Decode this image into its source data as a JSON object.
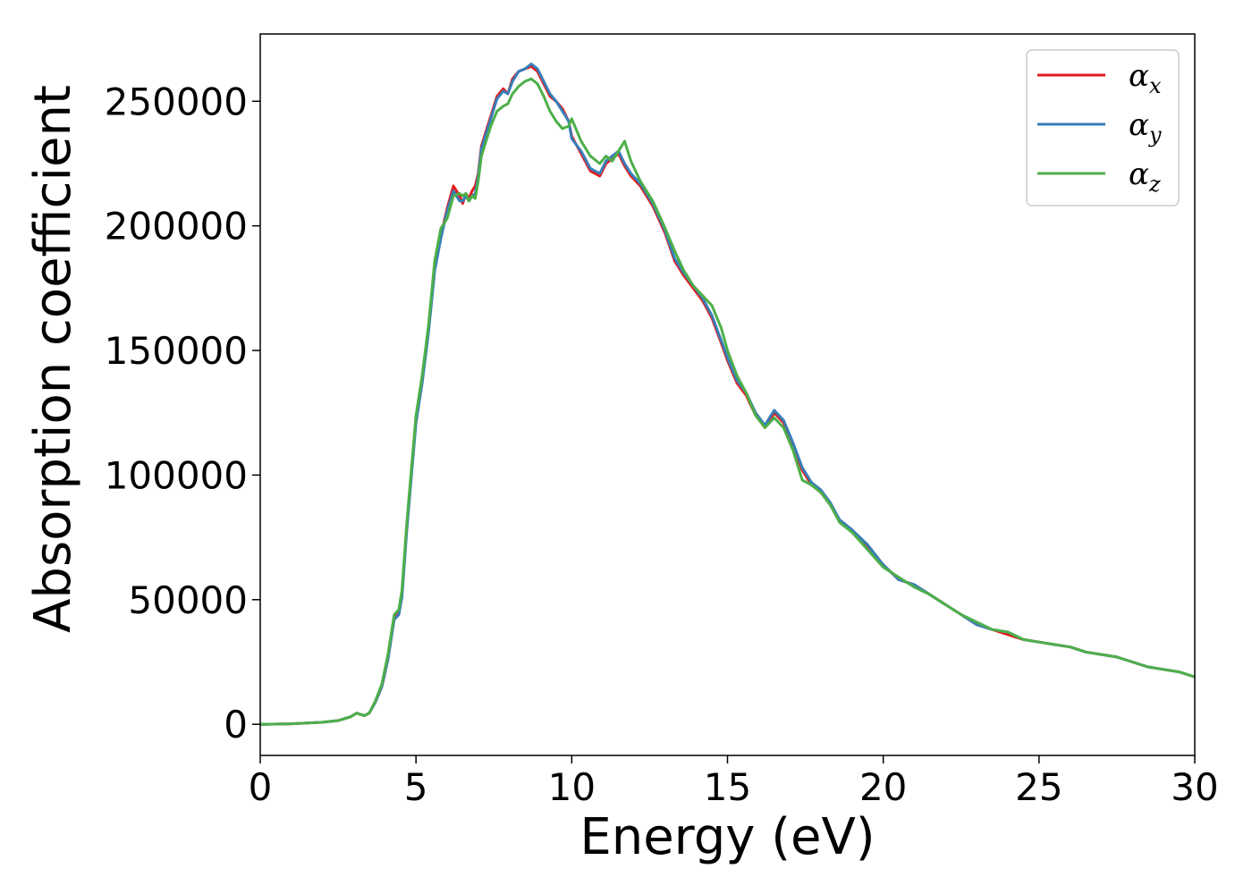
{
  "chart_data": {
    "type": "line",
    "xlabel": "Energy (eV)",
    "ylabel": "Absorption coefficient",
    "xlim": [
      0,
      30
    ],
    "ylim": [
      -12500,
      277000
    ],
    "xticks": [
      "0",
      "5",
      "10",
      "15",
      "20",
      "25",
      "30"
    ],
    "yticks": [
      "0",
      "50000",
      "100000",
      "150000",
      "200000",
      "250000"
    ],
    "grid": false,
    "legend_position": "top-right",
    "series": [
      {
        "name": "α",
        "sub": "x",
        "color": "#e41a1c",
        "x": [
          0,
          1,
          2,
          2.5,
          2.9,
          3.1,
          3.2,
          3.35,
          3.5,
          3.7,
          3.9,
          4.1,
          4.3,
          4.45,
          4.55,
          4.7,
          4.85,
          5.0,
          5.2,
          5.4,
          5.6,
          5.8,
          6.0,
          6.2,
          6.4,
          6.5,
          6.6,
          6.7,
          6.8,
          6.9,
          7.0,
          7.1,
          7.25,
          7.4,
          7.6,
          7.8,
          7.95,
          8.1,
          8.3,
          8.5,
          8.7,
          8.9,
          9.1,
          9.3,
          9.5,
          9.7,
          9.9,
          10.0,
          10.3,
          10.6,
          10.9,
          11.1,
          11.3,
          11.5,
          11.7,
          11.9,
          12.2,
          12.6,
          13.0,
          13.3,
          13.6,
          13.9,
          14.2,
          14.5,
          14.8,
          15.0,
          15.3,
          15.6,
          15.9,
          16.2,
          16.5,
          16.8,
          17.1,
          17.4,
          17.7,
          18.0,
          18.3,
          18.6,
          19.0,
          19.5,
          20.0,
          20.5,
          21.0,
          21.5,
          22.0,
          22.5,
          23.0,
          23.5,
          24.0,
          24.5,
          25.0,
          25.5,
          26.0,
          26.5,
          27.0,
          27.5,
          28.0,
          28.5,
          29.0,
          29.5,
          30.0
        ],
        "y": [
          0,
          200,
          800,
          1500,
          3000,
          4500,
          4000,
          3500,
          4500,
          9000,
          15000,
          26000,
          43000,
          45000,
          52000,
          78000,
          100000,
          122000,
          138000,
          158000,
          183000,
          196000,
          207000,
          216000,
          212000,
          209000,
          213000,
          211000,
          214000,
          216000,
          221000,
          232000,
          238000,
          244000,
          252000,
          255000,
          253000,
          259000,
          262000,
          263000,
          264000,
          262000,
          257000,
          252000,
          250000,
          247000,
          242000,
          236000,
          229000,
          222000,
          220000,
          225000,
          227000,
          229000,
          224000,
          220000,
          216000,
          208000,
          197000,
          186000,
          180000,
          175000,
          170000,
          163000,
          153000,
          146000,
          137000,
          132000,
          124000,
          119000,
          125000,
          121000,
          112000,
          102000,
          96000,
          93000,
          88000,
          82000,
          78000,
          71000,
          64000,
          58000,
          56000,
          52000,
          48000,
          44000,
          40000,
          38000,
          36000,
          34000,
          33000,
          32000,
          31000,
          29000,
          28000,
          27000,
          25000,
          23000,
          22000,
          21000,
          19000
        ]
      },
      {
        "name": "α",
        "sub": "y",
        "color": "#377eb8",
        "x": [
          0,
          1,
          2,
          2.5,
          2.9,
          3.1,
          3.2,
          3.35,
          3.5,
          3.7,
          3.9,
          4.1,
          4.3,
          4.45,
          4.55,
          4.7,
          4.85,
          5.0,
          5.2,
          5.4,
          5.6,
          5.8,
          6.0,
          6.2,
          6.4,
          6.5,
          6.6,
          6.7,
          6.8,
          6.9,
          7.0,
          7.1,
          7.25,
          7.4,
          7.6,
          7.8,
          7.95,
          8.1,
          8.3,
          8.5,
          8.7,
          8.9,
          9.1,
          9.3,
          9.5,
          9.7,
          9.9,
          10.0,
          10.3,
          10.6,
          10.9,
          11.1,
          11.3,
          11.5,
          11.7,
          11.9,
          12.2,
          12.6,
          13.0,
          13.3,
          13.6,
          13.9,
          14.2,
          14.5,
          14.8,
          15.0,
          15.3,
          15.6,
          15.9,
          16.2,
          16.5,
          16.8,
          17.1,
          17.4,
          17.7,
          18.0,
          18.3,
          18.6,
          19.0,
          19.5,
          20.0,
          20.5,
          21.0,
          21.5,
          22.0,
          22.5,
          23.0,
          23.5,
          24.0,
          24.5,
          25.0,
          25.5,
          26.0,
          26.5,
          27.0,
          27.5,
          28.0,
          28.5,
          29.0,
          29.5,
          30.0
        ],
        "y": [
          0,
          200,
          800,
          1500,
          3000,
          4500,
          4000,
          3500,
          4500,
          9000,
          15000,
          26000,
          42000,
          44000,
          51000,
          77000,
          99000,
          121000,
          137000,
          157000,
          182000,
          195000,
          206000,
          214000,
          210000,
          210000,
          212000,
          210000,
          212000,
          213000,
          220000,
          231000,
          237000,
          243000,
          251000,
          254000,
          253000,
          258000,
          262000,
          263000,
          265000,
          263000,
          258000,
          253000,
          250000,
          246000,
          242000,
          235000,
          230000,
          223000,
          221000,
          226000,
          228000,
          230000,
          225000,
          221000,
          217000,
          209000,
          198000,
          187000,
          181000,
          176000,
          171000,
          164000,
          154000,
          147000,
          138000,
          133000,
          125000,
          120000,
          126000,
          122000,
          113000,
          103000,
          97000,
          94000,
          89000,
          82000,
          78000,
          72000,
          64000,
          58000,
          56000,
          52000,
          48000,
          44000,
          40000,
          38000,
          37000,
          34000,
          33000,
          32000,
          31000,
          29000,
          28000,
          27000,
          25000,
          23000,
          22000,
          21000,
          19000
        ]
      },
      {
        "name": "α",
        "sub": "z",
        "color": "#4daf4a",
        "x": [
          0,
          1,
          2,
          2.5,
          2.9,
          3.1,
          3.2,
          3.35,
          3.5,
          3.7,
          3.9,
          4.1,
          4.3,
          4.45,
          4.55,
          4.7,
          4.85,
          5.0,
          5.2,
          5.4,
          5.6,
          5.8,
          6.0,
          6.2,
          6.4,
          6.5,
          6.6,
          6.7,
          6.8,
          6.9,
          7.0,
          7.1,
          7.25,
          7.4,
          7.6,
          7.8,
          7.95,
          8.1,
          8.3,
          8.5,
          8.7,
          8.9,
          9.1,
          9.3,
          9.5,
          9.7,
          9.9,
          10.0,
          10.3,
          10.6,
          10.9,
          11.1,
          11.3,
          11.5,
          11.7,
          11.9,
          12.2,
          12.6,
          13.0,
          13.3,
          13.6,
          13.9,
          14.2,
          14.5,
          14.8,
          15.0,
          15.3,
          15.6,
          15.9,
          16.2,
          16.5,
          16.8,
          17.1,
          17.4,
          17.7,
          18.0,
          18.3,
          18.6,
          19.0,
          19.5,
          20.0,
          20.5,
          21.0,
          21.5,
          22.0,
          22.5,
          23.0,
          23.5,
          24.0,
          24.5,
          25.0,
          25.5,
          26.0,
          26.5,
          27.0,
          27.5,
          28.0,
          28.5,
          29.0,
          29.5,
          30.0
        ],
        "y": [
          0,
          200,
          800,
          1500,
          3000,
          4500,
          4000,
          3500,
          4500,
          9500,
          16000,
          28000,
          44000,
          46000,
          54000,
          80000,
          102000,
          124000,
          140000,
          160000,
          186000,
          199000,
          203000,
          212000,
          213000,
          212000,
          213000,
          210000,
          212000,
          211000,
          218000,
          228000,
          234000,
          240000,
          246000,
          248000,
          249000,
          253000,
          256000,
          258000,
          259000,
          257000,
          252000,
          246000,
          242000,
          239000,
          240000,
          243000,
          234000,
          228000,
          225000,
          228000,
          226000,
          230000,
          234000,
          226000,
          218000,
          210000,
          199000,
          190000,
          182000,
          176000,
          172000,
          168000,
          159000,
          150000,
          140000,
          133000,
          124000,
          119000,
          123000,
          119000,
          110000,
          98000,
          96000,
          93000,
          88000,
          81000,
          77000,
          70000,
          63000,
          59000,
          55000,
          52000,
          48000,
          44000,
          41000,
          38000,
          37000,
          34000,
          33000,
          32000,
          31000,
          29000,
          28000,
          27000,
          25000,
          23000,
          22000,
          21000,
          19000
        ]
      }
    ]
  }
}
